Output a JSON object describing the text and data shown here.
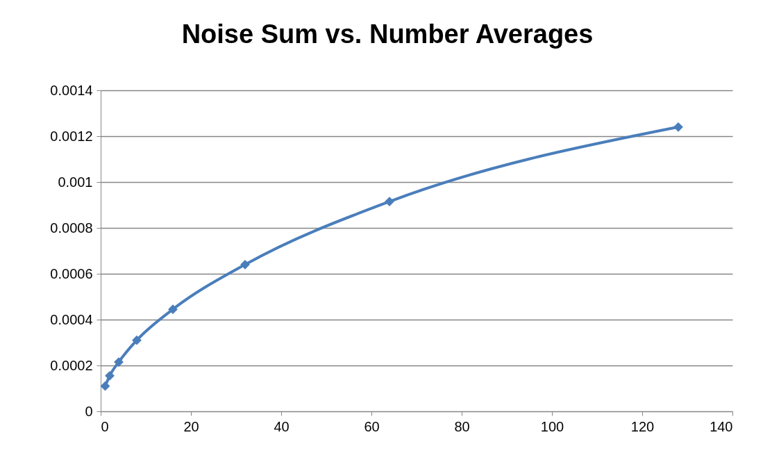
{
  "chart_data": {
    "type": "line",
    "title": "Noise Sum  vs. Number Averages",
    "x": [
      1,
      2,
      4,
      8,
      16,
      32,
      64,
      128
    ],
    "series": [
      {
        "color": "#4a7ebb",
        "values": [
          0.00011,
          0.000155,
          0.000215,
          0.00031,
          0.000445,
          0.00064,
          0.000915,
          0.00124
        ]
      }
    ],
    "xlim": [
      0,
      140
    ],
    "xticks": [
      0,
      20,
      40,
      60,
      80,
      100,
      120,
      140
    ],
    "ylim": [
      0,
      0.0014
    ],
    "yticks": [
      0,
      0.0002,
      0.0004,
      0.0006,
      0.0008,
      0.001,
      0.0012,
      0.0014
    ],
    "grid": "y",
    "marker": "diamond",
    "line_style": "solid",
    "legend": false
  }
}
